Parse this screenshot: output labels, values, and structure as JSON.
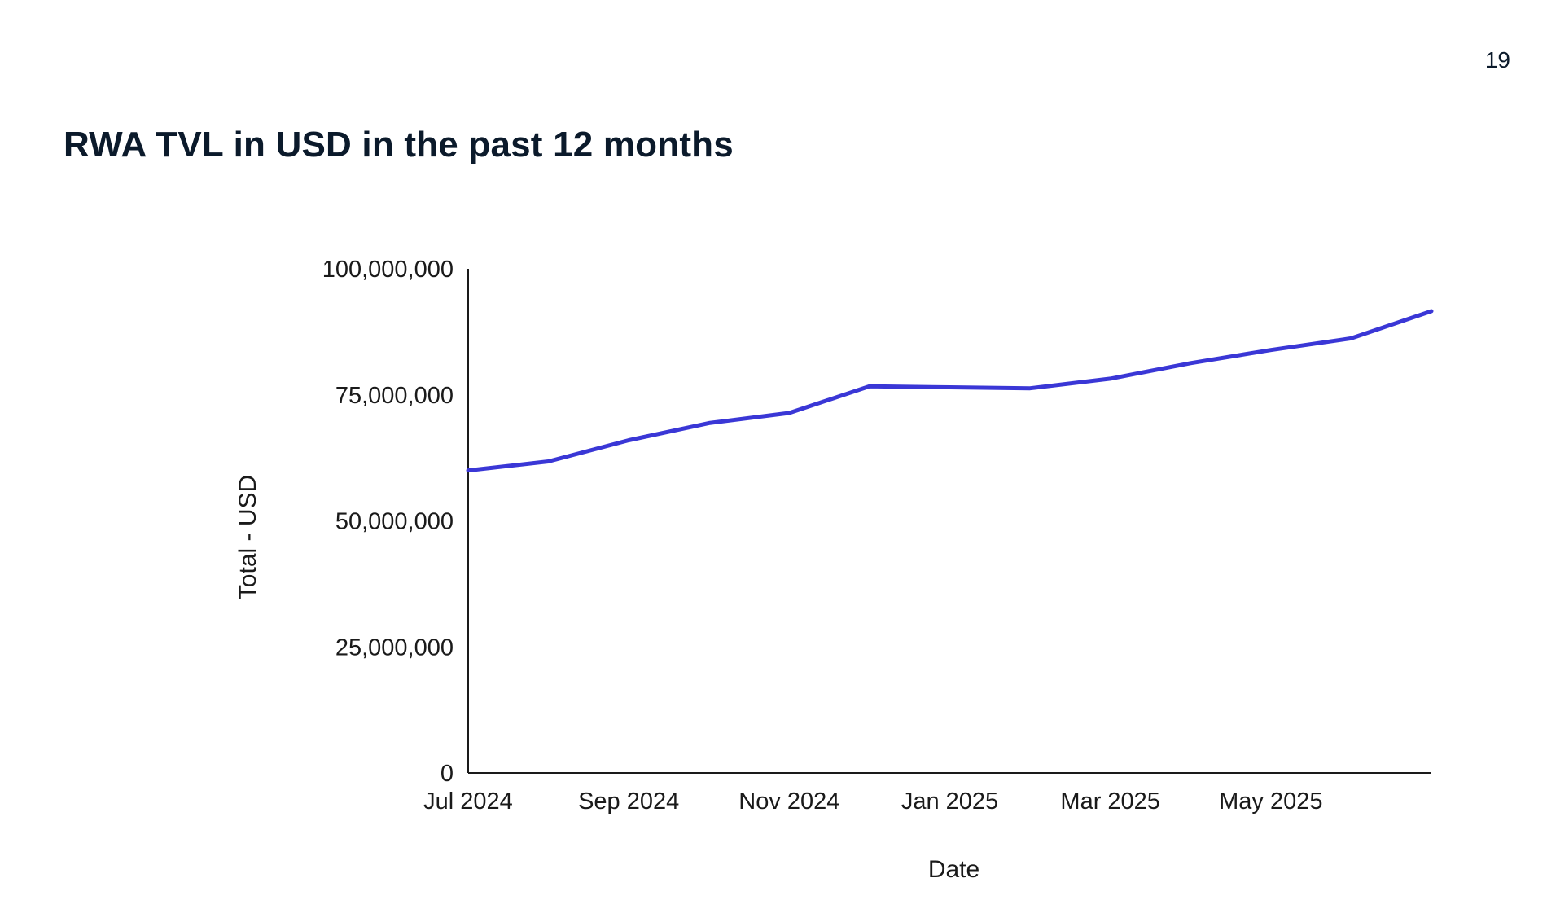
{
  "page_number": "19",
  "title": "RWA TVL in USD in the past 12 months",
  "chart_data": {
    "type": "line",
    "title": "RWA TVL in USD in the past 12 months",
    "xlabel": "Date",
    "ylabel": "Total - USD",
    "ylim": [
      0,
      100000000
    ],
    "y_ticks": [
      0,
      25000000,
      50000000,
      75000000,
      100000000
    ],
    "y_tick_labels": [
      "0",
      "25,000,000",
      "50,000,000",
      "75,000,000",
      "100,000,000"
    ],
    "xlim": [
      "2024-07",
      "2025-07"
    ],
    "x_ticks": [
      "2024-07",
      "2024-09",
      "2024-11",
      "2025-01",
      "2025-03",
      "2025-05"
    ],
    "x_tick_labels": [
      "Jul 2024",
      "Sep 2024",
      "Nov 2024",
      "Jan 2025",
      "Mar 2025",
      "May 2025"
    ],
    "grid": false,
    "series": [
      {
        "color": "#3a37d6",
        "x": [
          "2024-07",
          "2024-08",
          "2024-09",
          "2024-10",
          "2024-11",
          "2024-12",
          "2025-01",
          "2025-02",
          "2025-03",
          "2025-04",
          "2025-05",
          "2025-06",
          "2025-07"
        ],
        "values": [
          60000000,
          61800000,
          66000000,
          69400000,
          71400000,
          76700000,
          76500000,
          76300000,
          78200000,
          81300000,
          83900000,
          86200000,
          91600000
        ]
      }
    ]
  }
}
